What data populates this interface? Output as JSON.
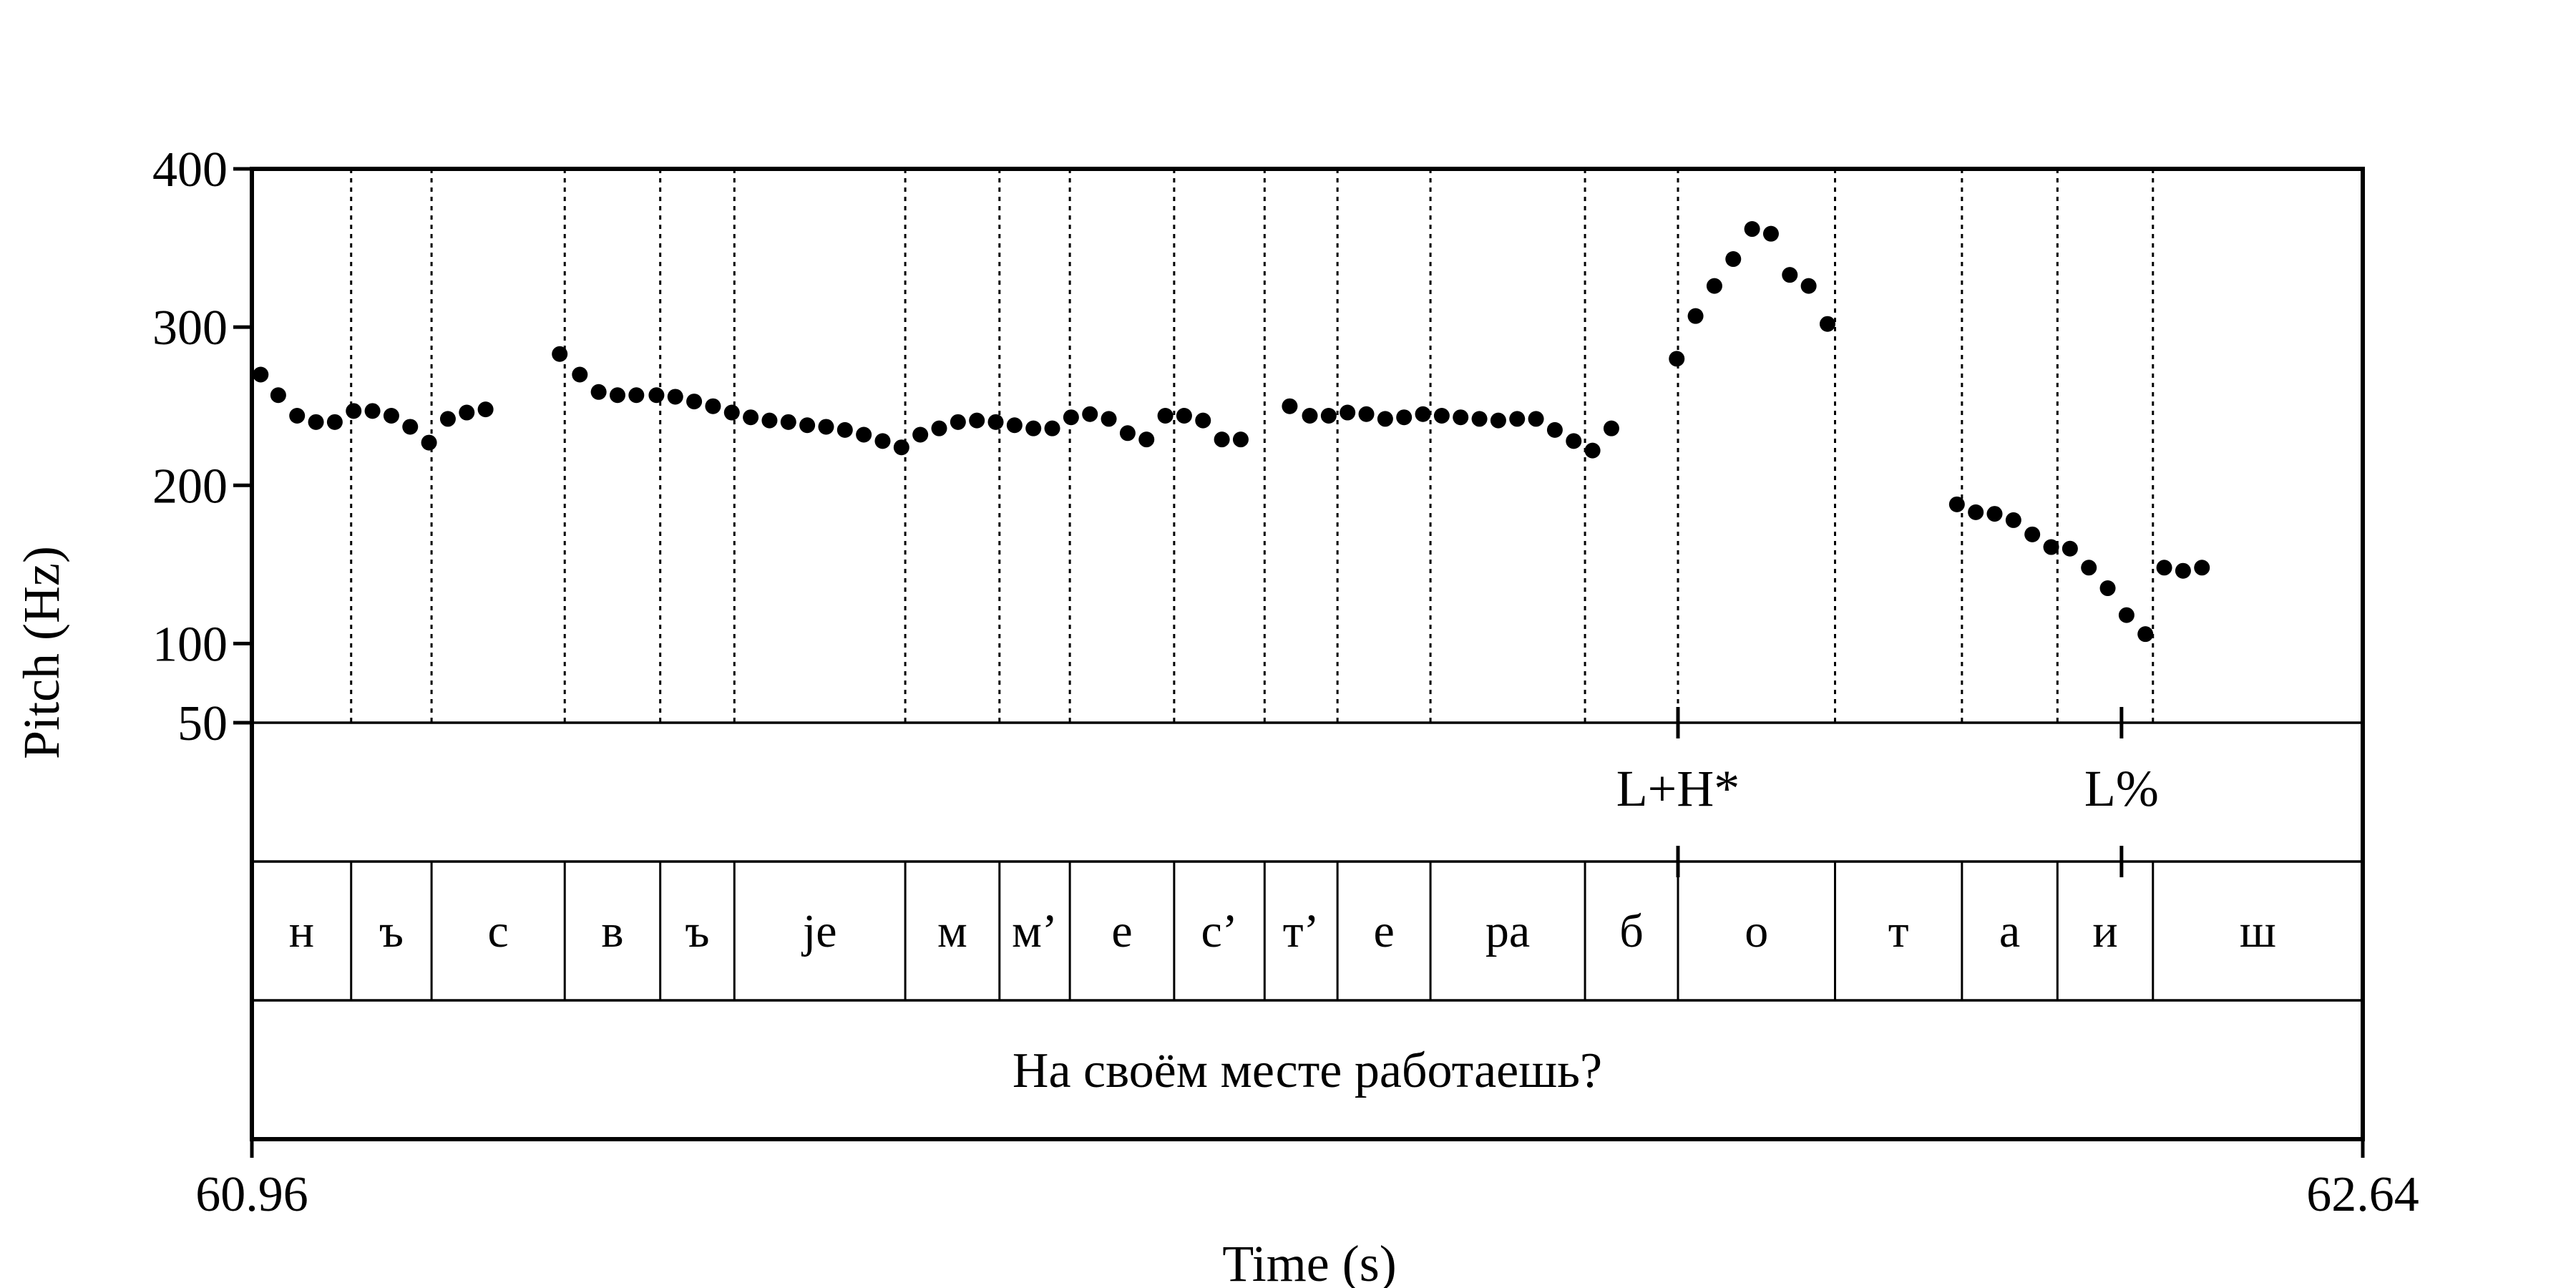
{
  "chart_data": {
    "type": "scatter",
    "title": "",
    "xlabel": "Time (s)",
    "ylabel": "Pitch (Hz)",
    "xlim": [
      60.96,
      62.64
    ],
    "ylim": [
      50,
      400
    ],
    "x_tick_labels": [
      "60.96",
      "62.64"
    ],
    "y_ticks": [
      400,
      300,
      200,
      100,
      50
    ],
    "y_tick_labels": [
      "400",
      "300",
      "200",
      "100",
      "50"
    ],
    "grid": false,
    "legend": "none",
    "pitch_points": [
      [
        60.967,
        270
      ],
      [
        60.981,
        257
      ],
      [
        60.996,
        244
      ],
      [
        61.011,
        240
      ],
      [
        61.026,
        240
      ],
      [
        61.041,
        247
      ],
      [
        61.056,
        247
      ],
      [
        61.071,
        244
      ],
      [
        61.086,
        237
      ],
      [
        61.101,
        227
      ],
      [
        61.116,
        242
      ],
      [
        61.131,
        246
      ],
      [
        61.146,
        248
      ],
      [
        61.205,
        283
      ],
      [
        61.221,
        270
      ],
      [
        61.236,
        259
      ],
      [
        61.251,
        257
      ],
      [
        61.266,
        257
      ],
      [
        61.282,
        257
      ],
      [
        61.297,
        256
      ],
      [
        61.312,
        253
      ],
      [
        61.327,
        250
      ],
      [
        61.342,
        246
      ],
      [
        61.357,
        243
      ],
      [
        61.372,
        241
      ],
      [
        61.387,
        240
      ],
      [
        61.402,
        238
      ],
      [
        61.417,
        237
      ],
      [
        61.432,
        235
      ],
      [
        61.447,
        232
      ],
      [
        61.462,
        228
      ],
      [
        61.477,
        224
      ],
      [
        61.492,
        232
      ],
      [
        61.507,
        236
      ],
      [
        61.522,
        240
      ],
      [
        61.537,
        241
      ],
      [
        61.552,
        240
      ],
      [
        61.567,
        238
      ],
      [
        61.582,
        236
      ],
      [
        61.597,
        236
      ],
      [
        61.612,
        243
      ],
      [
        61.627,
        245
      ],
      [
        61.642,
        242
      ],
      [
        61.657,
        233
      ],
      [
        61.672,
        229
      ],
      [
        61.687,
        244
      ],
      [
        61.702,
        244
      ],
      [
        61.717,
        241
      ],
      [
        61.732,
        229
      ],
      [
        61.747,
        229
      ],
      [
        61.786,
        250
      ],
      [
        61.802,
        244
      ],
      [
        61.817,
        244
      ],
      [
        61.832,
        246
      ],
      [
        61.847,
        245
      ],
      [
        61.862,
        242
      ],
      [
        61.877,
        243
      ],
      [
        61.892,
        245
      ],
      [
        61.907,
        244
      ],
      [
        61.922,
        243
      ],
      [
        61.937,
        242
      ],
      [
        61.952,
        241
      ],
      [
        61.967,
        242
      ],
      [
        61.982,
        242
      ],
      [
        61.997,
        235
      ],
      [
        62.012,
        228
      ],
      [
        62.027,
        222
      ],
      [
        62.042,
        236
      ],
      [
        62.094,
        280
      ],
      [
        62.109,
        307
      ],
      [
        62.124,
        326
      ],
      [
        62.139,
        343
      ],
      [
        62.154,
        362
      ],
      [
        62.169,
        359
      ],
      [
        62.184,
        333
      ],
      [
        62.199,
        326
      ],
      [
        62.214,
        302
      ],
      [
        62.317,
        188
      ],
      [
        62.332,
        183
      ],
      [
        62.347,
        182
      ],
      [
        62.362,
        178
      ],
      [
        62.377,
        169
      ],
      [
        62.392,
        161
      ],
      [
        62.407,
        160
      ],
      [
        62.422,
        148
      ],
      [
        62.437,
        135
      ],
      [
        62.452,
        118
      ],
      [
        62.467,
        106
      ],
      [
        62.482,
        148
      ],
      [
        62.497,
        146
      ],
      [
        62.512,
        148
      ]
    ],
    "tier_tones": [
      {
        "label": "L+H*",
        "x": 62.095
      },
      {
        "label": "L%",
        "x": 62.448
      }
    ],
    "tier_segments": [
      {
        "label": "н",
        "start": 60.96,
        "end": 61.039
      },
      {
        "label": "ъ",
        "start": 61.039,
        "end": 61.103
      },
      {
        "label": "с",
        "start": 61.103,
        "end": 61.209
      },
      {
        "label": "в",
        "start": 61.209,
        "end": 61.285
      },
      {
        "label": "ъ",
        "start": 61.285,
        "end": 61.344
      },
      {
        "label": "je",
        "start": 61.344,
        "end": 61.48
      },
      {
        "label": "м",
        "start": 61.48,
        "end": 61.555
      },
      {
        "label": "м’",
        "start": 61.555,
        "end": 61.611
      },
      {
        "label": "е",
        "start": 61.611,
        "end": 61.694
      },
      {
        "label": "с’",
        "start": 61.694,
        "end": 61.766
      },
      {
        "label": "т’",
        "start": 61.766,
        "end": 61.824
      },
      {
        "label": "е",
        "start": 61.824,
        "end": 61.898
      },
      {
        "label": "ра",
        "start": 61.898,
        "end": 62.021
      },
      {
        "label": "б",
        "start": 62.021,
        "end": 62.095
      },
      {
        "label": "о",
        "start": 62.095,
        "end": 62.22
      },
      {
        "label": "т",
        "start": 62.22,
        "end": 62.321
      },
      {
        "label": "а",
        "start": 62.321,
        "end": 62.397
      },
      {
        "label": "и",
        "start": 62.397,
        "end": 62.473
      },
      {
        "label": "ш",
        "start": 62.473,
        "end": 62.64
      }
    ],
    "utterance": "На своём месте работаешь?"
  }
}
